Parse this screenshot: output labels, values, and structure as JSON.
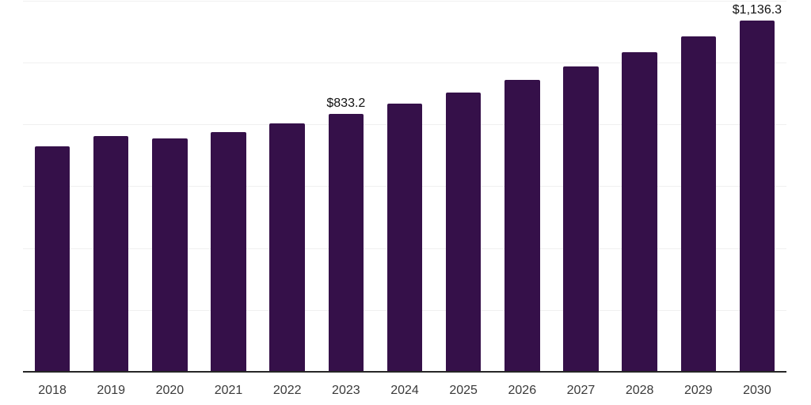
{
  "chart_data": {
    "type": "bar",
    "categories": [
      "2018",
      "2019",
      "2020",
      "2021",
      "2022",
      "2023",
      "2024",
      "2025",
      "2026",
      "2027",
      "2028",
      "2029",
      "2030"
    ],
    "values": [
      729.0,
      760.8,
      754.6,
      775.1,
      802.5,
      833.2,
      867.6,
      903.0,
      943.0,
      985.6,
      1032.4,
      1084.3,
      1136.3
    ],
    "bar_labels": [
      "",
      "",
      "",
      "",
      "",
      "$833.2",
      "",
      "",
      "",
      "",
      "",
      "",
      "$1,136.3"
    ],
    "ylim": [
      0,
      1200
    ],
    "gridline_step": 200,
    "grid": true,
    "legend_position": "none",
    "series_name": "bar-series"
  },
  "colors": {
    "bar": "#351049",
    "gridline": "#f0f0f0",
    "axis": "#262626",
    "tick_label": "#3a3a3a",
    "value_label": "#111111",
    "background": "#ffffff"
  }
}
